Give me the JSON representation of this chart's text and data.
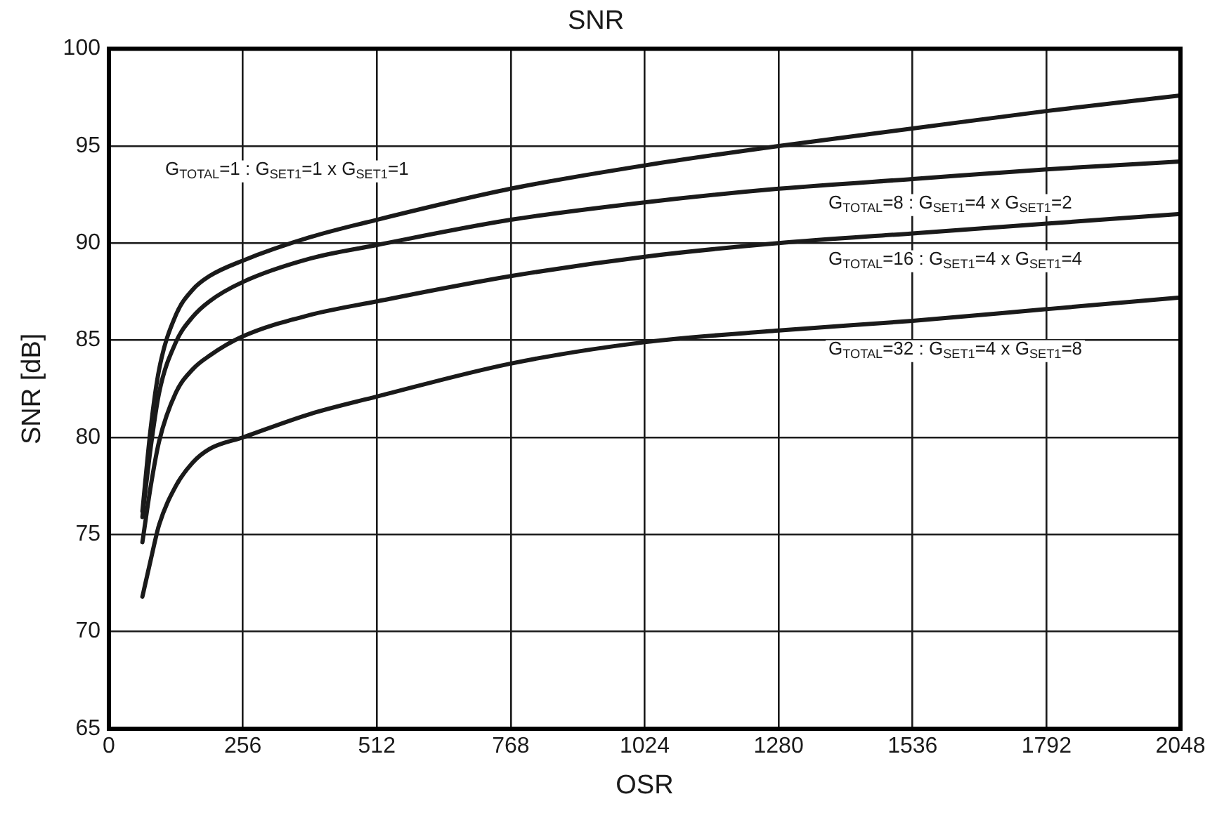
{
  "chart_data": {
    "type": "line",
    "title": "SNR",
    "xlabel": "OSR",
    "ylabel": "SNR [dB]",
    "xlim": [
      0,
      2048
    ],
    "xticks": [
      0,
      256,
      512,
      768,
      1024,
      1280,
      1536,
      1792,
      2048
    ],
    "ylim": [
      65,
      100
    ],
    "yticks": [
      65,
      70,
      75,
      80,
      85,
      90,
      95,
      100
    ],
    "grid": true,
    "legend": false,
    "marker": "none",
    "line_style": "solid",
    "x": [
      64,
      80,
      96,
      128,
      160,
      192,
      256,
      384,
      512,
      768,
      1024,
      1280,
      1536,
      1792,
      2048
    ],
    "series": [
      {
        "color": "#1a1a1a",
        "values": [
          76.2,
          80.5,
          83.5,
          86.3,
          87.6,
          88.3,
          89.1,
          90.3,
          91.2,
          92.8,
          94.0,
          95.0,
          95.9,
          96.8,
          97.6
        ]
      },
      {
        "color": "#1a1a1a",
        "values": [
          75.9,
          79.5,
          82.3,
          84.9,
          86.2,
          87.0,
          88.0,
          89.2,
          89.9,
          91.2,
          92.1,
          92.8,
          93.3,
          93.8,
          94.2
        ]
      },
      {
        "color": "#1a1a1a",
        "values": [
          74.6,
          77.5,
          79.8,
          82.3,
          83.5,
          84.2,
          85.2,
          86.3,
          87.0,
          88.3,
          89.3,
          90.0,
          90.5,
          91.0,
          91.5
        ]
      },
      {
        "color": "#1a1a1a",
        "values": [
          71.8,
          73.7,
          75.5,
          77.5,
          78.7,
          79.4,
          80.0,
          81.2,
          82.1,
          83.8,
          84.9,
          85.5,
          86.0,
          86.6,
          87.2
        ]
      }
    ],
    "annotations": [
      "G$_{TOTAL}$=1 : G$_{SET1}$=1 x G$_{SET1}$=1",
      "G$_{TOTAL}$=8 : G$_{SET1}$=4 x G$_{SET1}$=2",
      "G$_{TOTAL}$=16 : G$_{SET1}$=4 x G$_{SET1}$=4",
      "G$_{TOTAL}$=32 : G$_{SET1}$=4 x G$_{SET1}$=8"
    ]
  }
}
